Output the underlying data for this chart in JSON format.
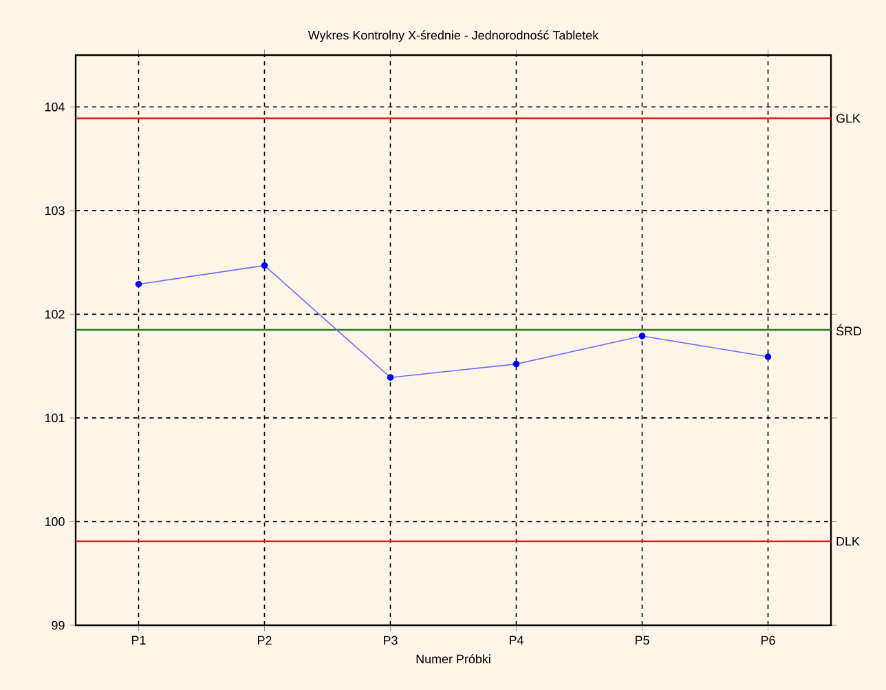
{
  "chart_data": {
    "type": "line",
    "title": "Wykres Kontrolny X-średnie - Jednorodność Tabletek",
    "xlabel": "Numer Próbki",
    "categories": [
      "P1",
      "P2",
      "P3",
      "P4",
      "P5",
      "P6"
    ],
    "series": [
      {
        "color": "#6f6fff",
        "values": [
          102.29,
          102.47,
          101.39,
          101.52,
          101.79,
          101.59
        ]
      }
    ],
    "marker": "circle",
    "grid": true,
    "ylim": [
      99,
      104.5
    ],
    "yticks": [
      99,
      100,
      101,
      102,
      103,
      104
    ],
    "ref_lines": [
      {
        "axis": "y",
        "value": 103.89,
        "label": "GLK",
        "color": "#e02020"
      },
      {
        "axis": "y",
        "value": 101.85,
        "label": "ŚRD",
        "color": "#208020"
      },
      {
        "axis": "y",
        "value": 99.81,
        "label": "DLK",
        "color": "#e02020"
      }
    ]
  }
}
